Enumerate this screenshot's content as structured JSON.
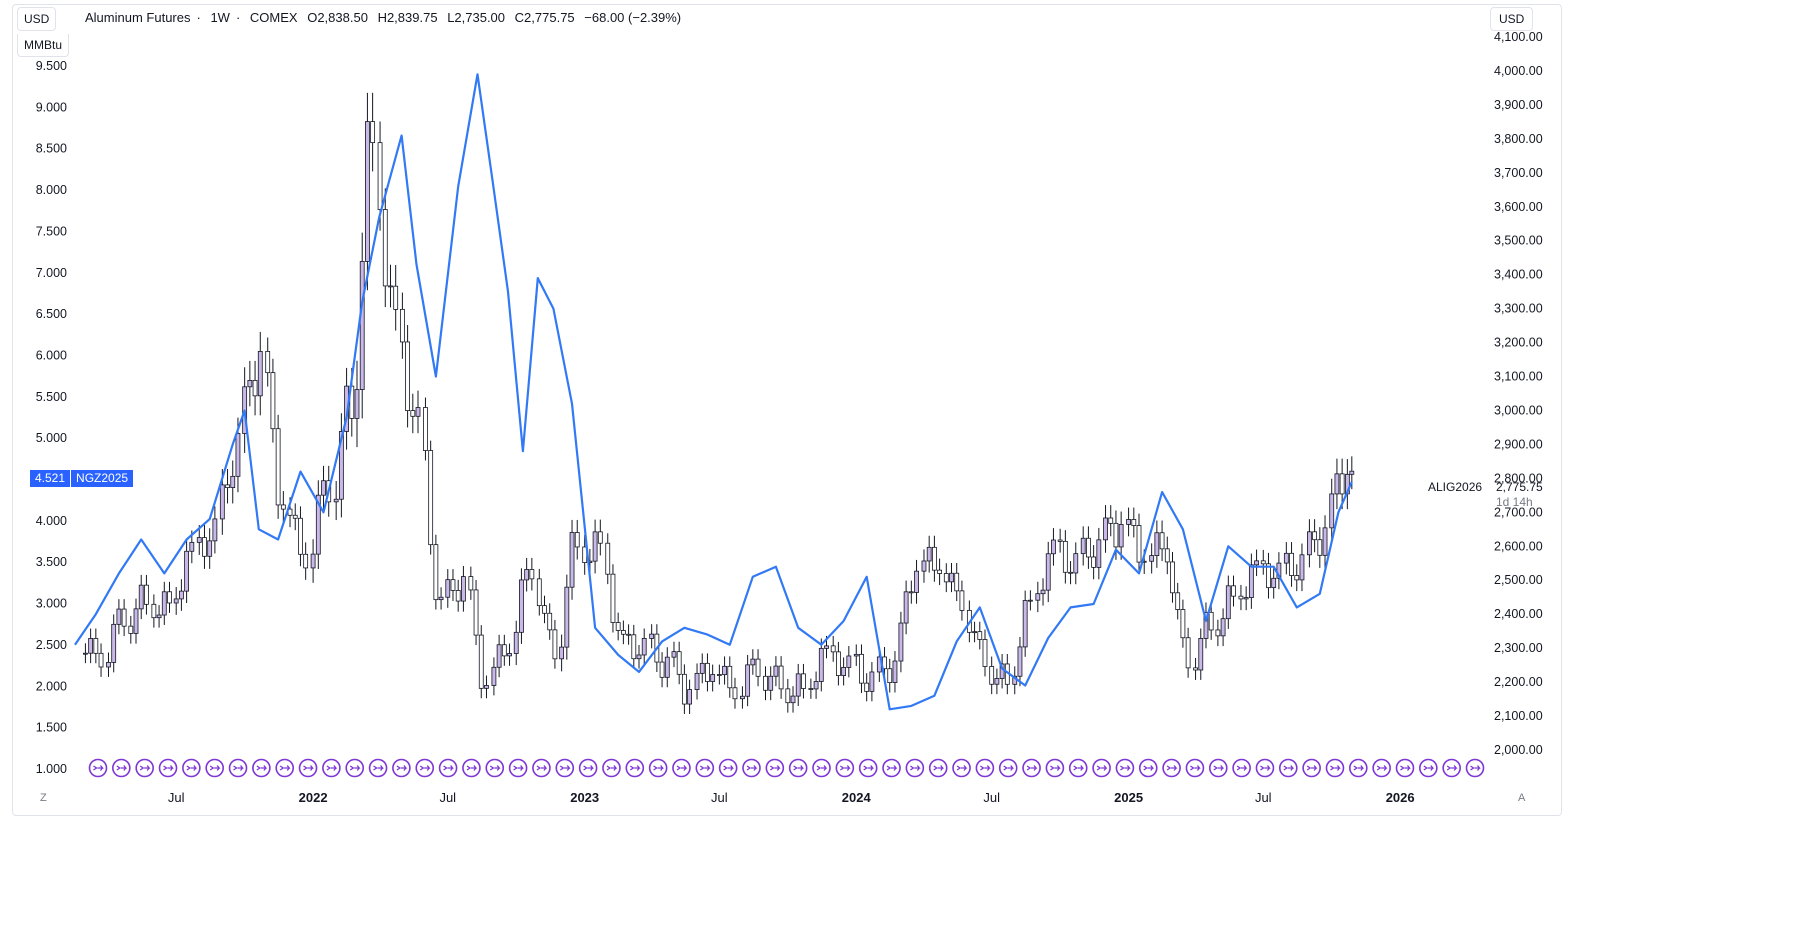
{
  "header": {
    "title": "Aluminum Futures",
    "interval": "1W",
    "exchange": "COMEX",
    "open": "O2,838.50",
    "high": "H2,839.75",
    "low": "L2,735.00",
    "close": "C2,775.75",
    "change": "−68.00 (−2.39%)"
  },
  "left_units": {
    "currency": "USD",
    "unit": "MMBtu"
  },
  "right_unit": "USD",
  "left_tag": {
    "price": "4.521",
    "symbol": "NGZ2025"
  },
  "right_tag": {
    "symbol": "ALIG2026",
    "price": "2,775.75",
    "countdown": "1d 14h"
  },
  "corners": {
    "left": "Z",
    "right": "A"
  },
  "colors": {
    "line": "#3179f5",
    "candle_up": "#c9b8e8",
    "candle_down": "#ffffff",
    "candle_border": "#131722",
    "event": "#7e36d4"
  },
  "chart_data": {
    "type": "line",
    "x_axis": {
      "type": "time",
      "tick_labels": [
        "Jul",
        "2022",
        "Jul",
        "2023",
        "Jul",
        "2024",
        "Jul",
        "2025",
        "Jul",
        "2026"
      ],
      "range": [
        "2021-02-15",
        "2026-04-25"
      ]
    },
    "left_axis": {
      "range": [
        1.0,
        9.5
      ],
      "ticks": [
        "1.000",
        "1.500",
        "2.000",
        "2.500",
        "3.000",
        "3.500",
        "4.000",
        "4.500",
        "5.000",
        "5.500",
        "6.000",
        "6.500",
        "7.000",
        "7.500",
        "8.000",
        "8.500",
        "9.000",
        "9.500"
      ]
    },
    "right_axis": {
      "range": [
        2000,
        4100
      ],
      "ticks": [
        "2,000.00",
        "2,100.00",
        "2,200.00",
        "2,300.00",
        "2,400.00",
        "2,500.00",
        "2,600.00",
        "2,700.00",
        "2,800.00",
        "2,900.00",
        "3,000.00",
        "3,100.00",
        "3,200.00",
        "3,300.00",
        "3,400.00",
        "3,500.00",
        "3,600.00",
        "3,700.00",
        "3,800.00",
        "3,900.00",
        "4,000.00",
        "4,100.00"
      ]
    },
    "series": [
      {
        "name": "ALIG2026",
        "type": "line",
        "axis": "right",
        "x": [
          "2021-02-15",
          "2021-03-15",
          "2021-04-15",
          "2021-05-15",
          "2021-06-15",
          "2021-07-15",
          "2021-08-15",
          "2021-09-15",
          "2021-10-01",
          "2021-10-20",
          "2021-11-15",
          "2021-12-15",
          "2022-01-15",
          "2022-02-15",
          "2022-03-08",
          "2022-03-31",
          "2022-04-30",
          "2022-05-20",
          "2022-06-15",
          "2022-07-15",
          "2022-08-10",
          "2022-08-30",
          "2022-09-20",
          "2022-10-10",
          "2022-10-30",
          "2022-11-20",
          "2022-12-15",
          "2023-01-15",
          "2023-02-15",
          "2023-03-15",
          "2023-04-15",
          "2023-05-15",
          "2023-06-15",
          "2023-07-15",
          "2023-08-15",
          "2023-09-15",
          "2023-10-15",
          "2023-11-15",
          "2023-12-15",
          "2024-01-15",
          "2024-02-15",
          "2024-03-15",
          "2024-04-15",
          "2024-05-15",
          "2024-06-15",
          "2024-07-15",
          "2024-08-15",
          "2024-09-15",
          "2024-10-15",
          "2024-11-15",
          "2024-12-15",
          "2025-01-15",
          "2025-02-15",
          "2025-03-15",
          "2025-04-15",
          "2025-05-15",
          "2025-06-15",
          "2025-07-15",
          "2025-08-15",
          "2025-09-15",
          "2025-10-10",
          "2025-10-28"
        ],
        "values": [
          2310,
          2400,
          2520,
          2620,
          2520,
          2620,
          2680,
          2900,
          3000,
          2650,
          2620,
          2820,
          2700,
          2980,
          3320,
          3570,
          3810,
          3430,
          3100,
          3660,
          3990,
          3680,
          3350,
          2880,
          3390,
          3300,
          3020,
          2360,
          2280,
          2230,
          2320,
          2360,
          2340,
          2310,
          2510,
          2540,
          2360,
          2310,
          2380,
          2510,
          2120,
          2130,
          2160,
          2320,
          2420,
          2240,
          2190,
          2330,
          2420,
          2430,
          2590,
          2520,
          2760,
          2650,
          2380,
          2600,
          2540,
          2540,
          2420,
          2460,
          2700,
          2790
        ]
      },
      {
        "name": "NGZ2025",
        "type": "candlestick",
        "axis": "left",
        "note": "weekly OHLC candles",
        "x": [
          "2021-03-01",
          "2021-04-01",
          "2021-05-01",
          "2021-06-01",
          "2021-07-01",
          "2021-08-01",
          "2021-09-01",
          "2021-10-01",
          "2021-11-01",
          "2021-12-01",
          "2022-01-01",
          "2022-02-01",
          "2022-03-01",
          "2022-04-01",
          "2022-05-01",
          "2022-06-01",
          "2022-07-01",
          "2022-08-01",
          "2022-09-01",
          "2022-10-01",
          "2022-11-01",
          "2022-12-01",
          "2023-01-01",
          "2023-02-01",
          "2023-03-01",
          "2023-04-01",
          "2023-05-01",
          "2023-06-01",
          "2023-07-01",
          "2023-08-01",
          "2023-09-01",
          "2023-10-01",
          "2023-11-01",
          "2023-12-01",
          "2024-01-01",
          "2024-02-01",
          "2024-03-01",
          "2024-04-01",
          "2024-05-01",
          "2024-06-01",
          "2024-07-01",
          "2024-08-01",
          "2024-09-01",
          "2024-10-01",
          "2024-11-01",
          "2024-12-01",
          "2025-01-01",
          "2025-02-01",
          "2025-03-01",
          "2025-04-01",
          "2025-05-01",
          "2025-06-01",
          "2025-07-01",
          "2025-08-01",
          "2025-09-01",
          "2025-10-01",
          "2025-10-28"
        ],
        "close": [
          2.4,
          2.9,
          3.1,
          3.0,
          3.6,
          3.8,
          4.8,
          5.9,
          4.2,
          3.6,
          4.5,
          5.5,
          8.7,
          6.4,
          5.1,
          2.9,
          3.2,
          2.0,
          2.5,
          3.5,
          2.5,
          3.8,
          3.7,
          2.5,
          2.4,
          2.2,
          1.9,
          2.2,
          2.0,
          2.3,
          2.1,
          2.0,
          2.4,
          2.2,
          2.0,
          2.2,
          3.4,
          3.5,
          3.1,
          2.4,
          2.1,
          3.0,
          3.6,
          3.4,
          3.6,
          3.9,
          3.6,
          3.7,
          2.4,
          2.8,
          3.1,
          3.4,
          3.3,
          3.4,
          3.8,
          4.6,
          4.5
        ]
      }
    ],
    "event_markers": 60
  }
}
